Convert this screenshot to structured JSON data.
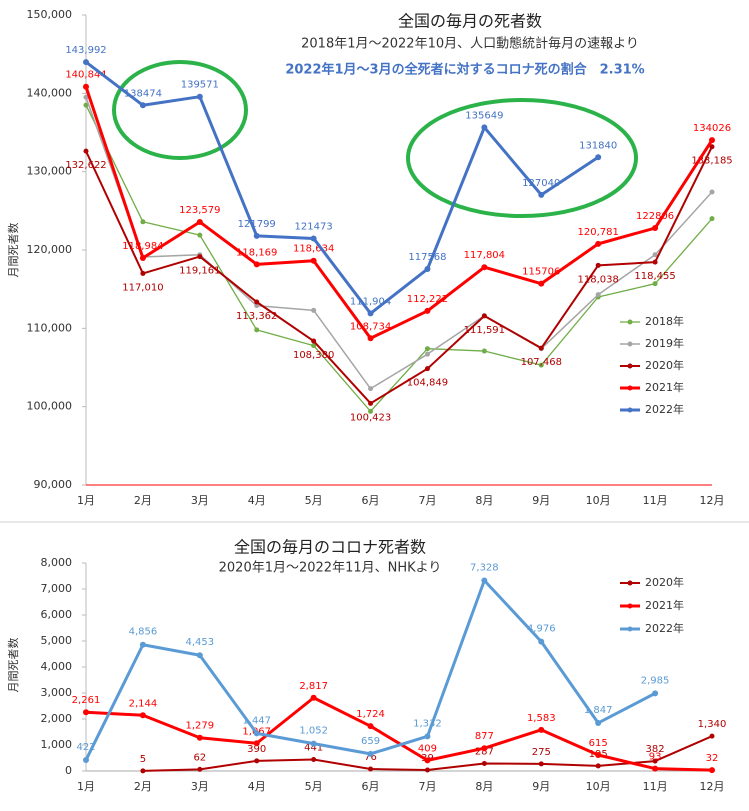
{
  "chart_data": [
    {
      "type": "line",
      "title": "全国の毎月の死者数",
      "subtitle": "2018年1月～2022年10月、人口動態統計毎月の速報より",
      "annotation": "2022年1月～3月の全死者に対するコロナ死の割合　2.31%",
      "ylabel": "月間死者数",
      "categories": [
        "1月",
        "2月",
        "3月",
        "4月",
        "5月",
        "6月",
        "7月",
        "8月",
        "9月",
        "10月",
        "11月",
        "12月"
      ],
      "ylim": [
        90000,
        150000
      ],
      "yticks": [
        {
          "value": 90000,
          "label": "90,000"
        },
        {
          "value": 100000,
          "label": "100,000"
        },
        {
          "value": 110000,
          "label": "110,000"
        },
        {
          "value": 120000,
          "label": "120,000"
        },
        {
          "value": 130000,
          "label": "130,000"
        },
        {
          "value": 140000,
          "label": "140,000"
        },
        {
          "value": 150000,
          "label": "150,000"
        }
      ],
      "grid": false,
      "legend": "right",
      "series": [
        {
          "name": "2018年",
          "color": "#70ad47",
          "values": [
            138500,
            123600,
            121900,
            109800,
            107800,
            99400,
            107400,
            107100,
            105300,
            114000,
            115700,
            124000
          ]
        },
        {
          "name": "2019年",
          "color": "#a5a5a5",
          "values": [
            139500,
            119100,
            119400,
            112900,
            112300,
            102300,
            106700,
            111600,
            107400,
            114300,
            119400,
            127400
          ]
        },
        {
          "name": "2020年",
          "color": "#b00000",
          "values": [
            132622,
            117010,
            119161,
            113362,
            108380,
            100423,
            104849,
            111591,
            107468,
            118038,
            118455,
            133185
          ],
          "value_labels": [
            "132,622",
            "117,010",
            "119,161",
            "113,362",
            "108,380",
            "100,423",
            "104,849",
            "111,591",
            "107,468",
            "118,038",
            "118,455",
            "133,185"
          ]
        },
        {
          "name": "2021年",
          "color": "#ff0000",
          "values": [
            140844,
            118984,
            123579,
            118169,
            118634,
            108734,
            112222,
            117804,
            115706,
            120781,
            122806,
            134026
          ],
          "value_labels": [
            "140,844",
            "118,984",
            "123,579",
            "118,169",
            "118,634",
            "108,734",
            "112,222",
            "117,804",
            null,
            "120,781",
            null,
            null
          ]
        },
        {
          "name": "2022年",
          "color": "#4472c4",
          "values": [
            143992,
            138474,
            139571,
            121799,
            121473,
            111904,
            117568,
            135649,
            127040,
            131840,
            null,
            null
          ],
          "value_labels": [
            "143,992",
            null,
            null,
            null,
            null,
            "111,904",
            null,
            null,
            null,
            null,
            null,
            null
          ]
        }
      ]
    },
    {
      "type": "line",
      "title": "全国の毎月のコロナ死者数",
      "subtitle": "2020年1月～2022年11月、NHKより",
      "ylabel": "月間死者数",
      "categories": [
        "1月",
        "2月",
        "3月",
        "4月",
        "5月",
        "6月",
        "7月",
        "8月",
        "9月",
        "10月",
        "11月",
        "12月"
      ],
      "ylim": [
        0,
        8000
      ],
      "yticks": [
        0,
        {
          "value": 1000,
          "label": "1,000"
        },
        {
          "value": 2000,
          "label": "2,000"
        },
        {
          "value": 3000,
          "label": "3,000"
        },
        {
          "value": 4000,
          "label": "4,000"
        },
        {
          "value": 5000,
          "label": "5,000"
        },
        {
          "value": 6000,
          "label": "6,000"
        },
        {
          "value": 7000,
          "label": "7,000"
        },
        {
          "value": 8000,
          "label": "8,000"
        }
      ],
      "grid": false,
      "legend": "right",
      "series": [
        {
          "name": "2020年",
          "color": "#b00000",
          "values": [
            null,
            5,
            62,
            390,
            441,
            76,
            39,
            287,
            275,
            195,
            382,
            1340
          ],
          "value_labels": [
            null,
            null,
            null,
            null,
            null,
            null,
            null,
            null,
            null,
            null,
            null,
            "1,340"
          ]
        },
        {
          "name": "2021年",
          "color": "#ff0000",
          "values": [
            2261,
            2144,
            1279,
            1067,
            2817,
            1724,
            409,
            877,
            1583,
            615,
            93,
            32
          ],
          "value_labels": [
            "2,261",
            "2,144",
            "1,279",
            "1,067",
            "2,817",
            "1,724",
            null,
            null,
            "1,583",
            null,
            null,
            null
          ]
        },
        {
          "name": "2022年",
          "color": "#5b9bd5",
          "values": [
            422,
            4856,
            4453,
            1447,
            1052,
            659,
            1332,
            7328,
            4976,
            1847,
            2985,
            null
          ],
          "value_labels": [
            null,
            "4,856",
            "4,453",
            "1,447",
            "1,052",
            null,
            "1,332",
            "7,328",
            "4,976",
            "1,847",
            "2,985",
            null
          ]
        }
      ]
    }
  ]
}
